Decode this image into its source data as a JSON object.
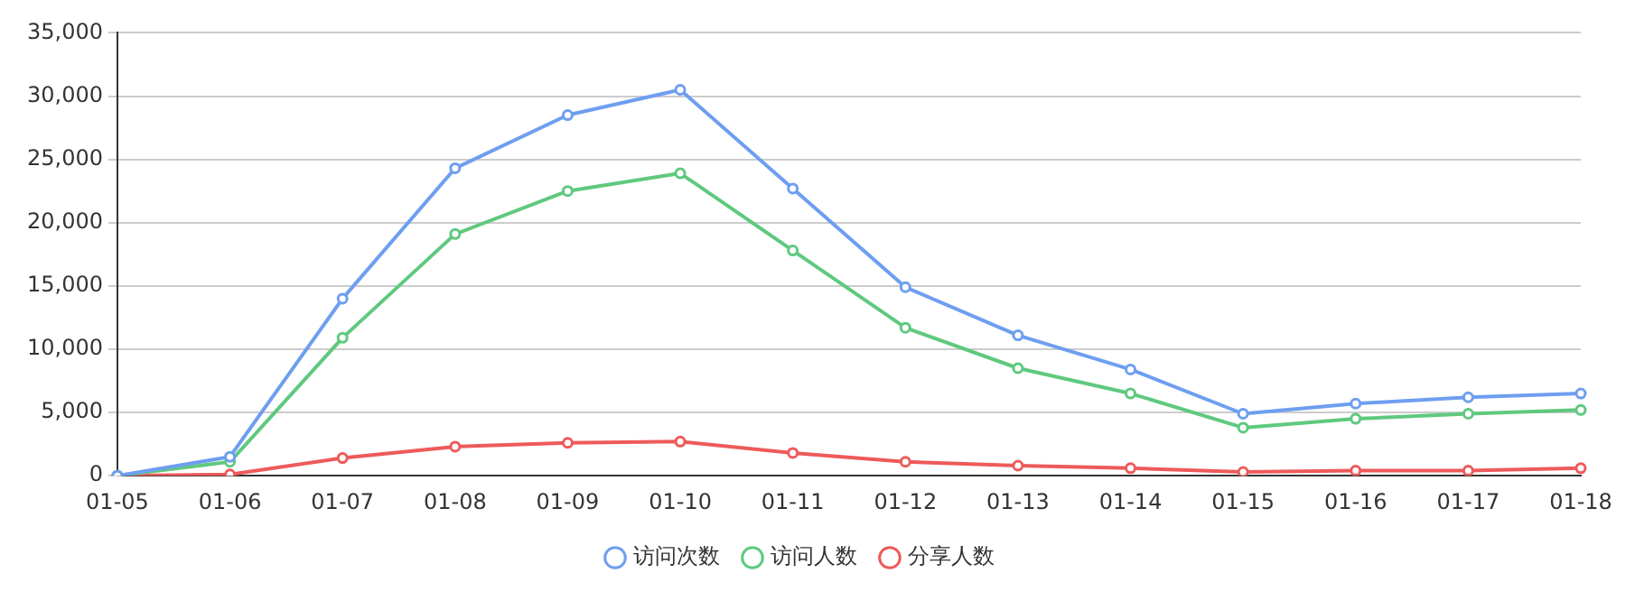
{
  "chart_data": {
    "type": "line",
    "categories": [
      "01-05",
      "01-06",
      "01-07",
      "01-08",
      "01-09",
      "01-10",
      "01-11",
      "01-12",
      "01-13",
      "01-14",
      "01-15",
      "01-16",
      "01-17",
      "01-18"
    ],
    "series": [
      {
        "name": "访问次数",
        "color": "#6e9ef0",
        "values": [
          0,
          1500,
          14000,
          24300,
          28500,
          30500,
          22700,
          14900,
          11100,
          8400,
          4900,
          5700,
          6200,
          6500
        ]
      },
      {
        "name": "访问人数",
        "color": "#5fc97e",
        "values": [
          0,
          1100,
          10900,
          19100,
          22500,
          23900,
          17800,
          11700,
          8500,
          6500,
          3800,
          4500,
          4900,
          5200
        ]
      },
      {
        "name": "分享人数",
        "color": "#ee5a5a",
        "values": [
          0,
          100,
          1400,
          2300,
          2600,
          2700,
          1800,
          1100,
          800,
          600,
          300,
          400,
          400,
          600
        ]
      }
    ],
    "ylim": [
      0,
      35000
    ],
    "yticks": [
      0,
      {
        "value": 5000,
        "label": "5,000"
      },
      {
        "value": 10000,
        "label": "10,000"
      },
      {
        "value": 15000,
        "label": "15,000"
      },
      {
        "value": 20000,
        "label": "20,000"
      },
      {
        "value": 25000,
        "label": "25,000"
      },
      {
        "value": 30000,
        "label": "30,000"
      },
      {
        "value": 35000,
        "label": "35,000"
      }
    ],
    "grid": "y",
    "legend": "bottom",
    "marker": "circle",
    "line_style": "solid"
  }
}
